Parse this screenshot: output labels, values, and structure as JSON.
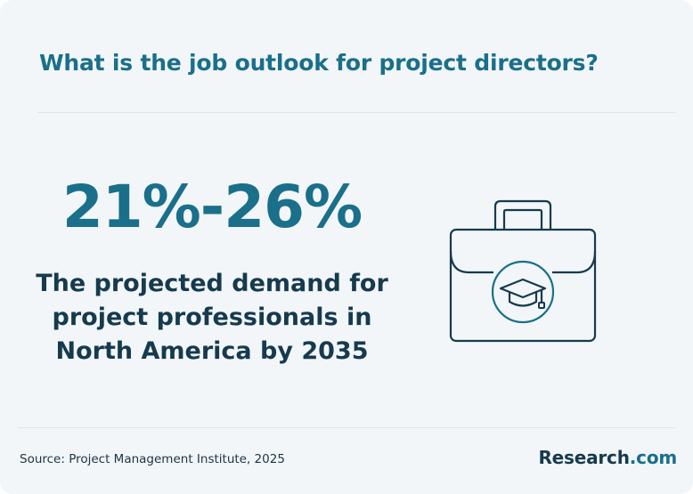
{
  "header": {
    "title": "What is the job outlook for project directors?"
  },
  "stat": {
    "value": "21%-26%",
    "description_lines": [
      "The projected demand for",
      "project professionals in",
      "North America by 2035"
    ]
  },
  "illustration": {
    "icon": "briefcase-graduation-cap-icon",
    "stroke_color": "#163a4e",
    "accent_color": "#1a6f8a"
  },
  "footer": {
    "source": "Source: Project Management Institute, 2025",
    "brand_name": "Research",
    "brand_suffix": ".com"
  },
  "colors": {
    "background": "#f2f6f8",
    "title": "#1a6f8a",
    "body_text": "#163a4e"
  }
}
